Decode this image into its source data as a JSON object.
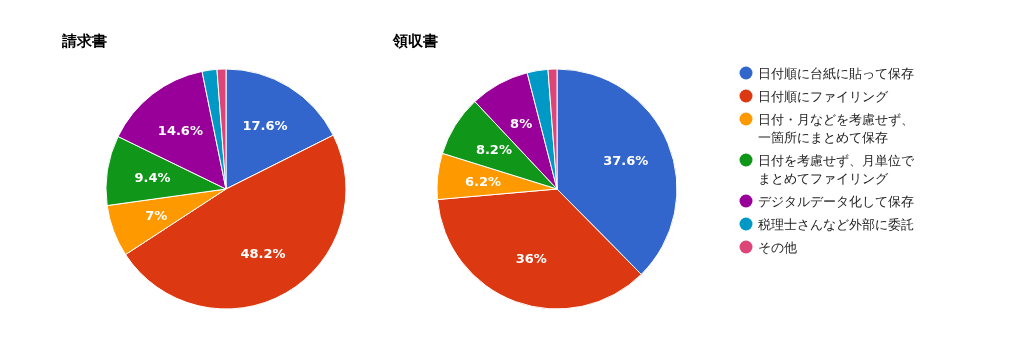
{
  "chart_data": [
    {
      "type": "pie",
      "title": "請求書",
      "categories": [
        "日付順に台紙に貼って保存",
        "日付順にファイリング",
        "日付・月などを考慮せず、一箇所にまとめて保存",
        "日付を考慮せず、月単位でまとめてファイリング",
        "デジタルデータ化して保存",
        "税理士さんなど外部に委託",
        "その他"
      ],
      "values": [
        17.6,
        48.2,
        7,
        9.4,
        14.6,
        2.0,
        1.2
      ],
      "value_labels": [
        "17.6%",
        "48.2%",
        "7%",
        "9.4%",
        "14.6%",
        null,
        null
      ],
      "colors": [
        "#3366cc",
        "#dc3912",
        "#ff9900",
        "#109618",
        "#990099",
        "#0099c6",
        "#dd4477"
      ],
      "legend": "right"
    },
    {
      "type": "pie",
      "title": "領収書",
      "values": [
        37.6,
        36,
        6.2,
        8.2,
        8,
        2.8,
        1.2
      ],
      "value_labels": [
        "37.6%",
        "36%",
        "6.2%",
        "8.2%",
        "8%",
        null,
        null
      ],
      "colors": [
        "#3366cc",
        "#dc3912",
        "#ff9900",
        "#109618",
        "#990099",
        "#0099c6",
        "#dd4477"
      ]
    }
  ]
}
